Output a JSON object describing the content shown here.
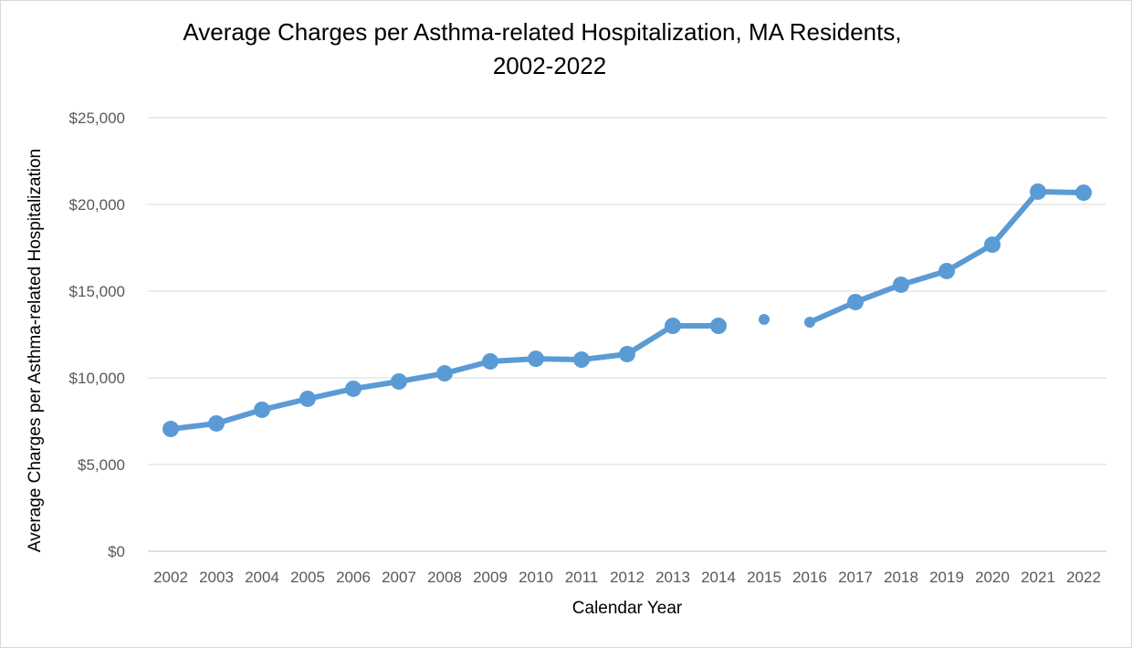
{
  "chart_data": {
    "type": "line",
    "title_line1": "Average Charges per Asthma-related Hospitalization, MA Residents,",
    "title_line2": "2002-2022",
    "xlabel": "Calendar Year",
    "ylabel": "Average Charges per Asthma-related Hospitalization",
    "ylim": [
      0,
      25000
    ],
    "yticks": [
      "$0",
      "$5,000",
      "$10,000",
      "$15,000",
      "$20,000",
      "$25,000"
    ],
    "ytick_values": [
      0,
      5000,
      10000,
      15000,
      20000,
      25000
    ],
    "grid": true,
    "legend": "none",
    "color": "#5b9bd5",
    "categories": [
      "2002",
      "2003",
      "2004",
      "2005",
      "2006",
      "2007",
      "2008",
      "2009",
      "2010",
      "2011",
      "2012",
      "2013",
      "2014",
      "2015",
      "2016",
      "2017",
      "2018",
      "2019",
      "2020",
      "2021",
      "2022"
    ],
    "values": [
      7050,
      7370,
      8160,
      8790,
      9370,
      9790,
      10260,
      10950,
      11100,
      11050,
      11370,
      13000,
      13000,
      13370,
      13210,
      14370,
      15370,
      16160,
      17680,
      20740,
      20680
    ],
    "segments": [
      [
        0,
        12
      ],
      [
        13,
        13
      ],
      [
        14,
        20
      ]
    ],
    "small_markers": [
      "2015",
      "2016"
    ]
  }
}
